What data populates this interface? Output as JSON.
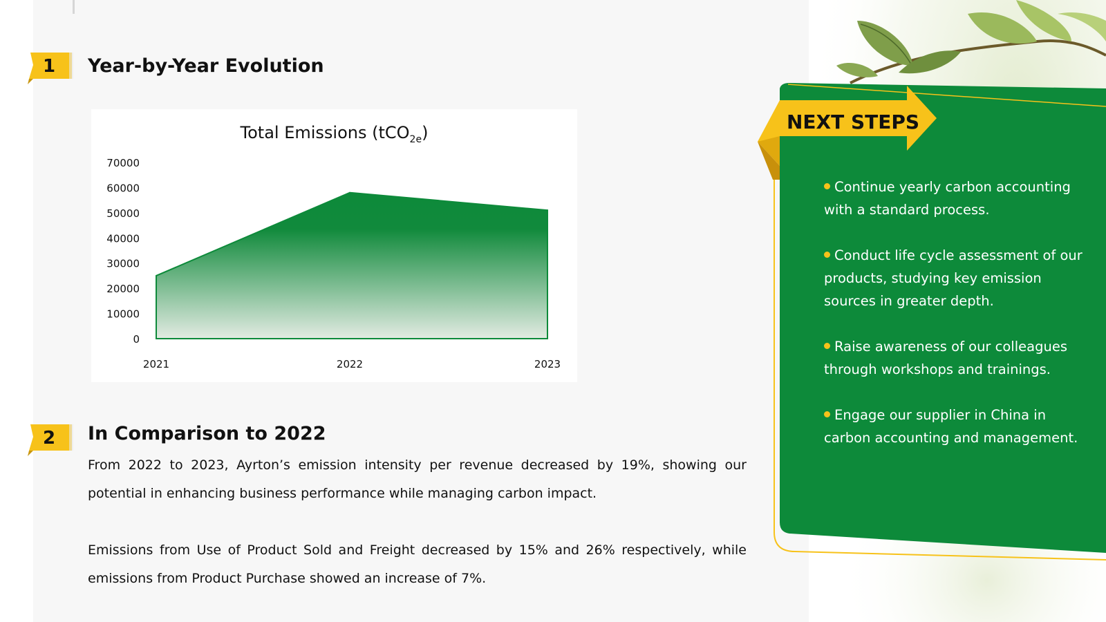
{
  "section1": {
    "number": "1",
    "title": "Year-by-Year Evolution"
  },
  "section2": {
    "number": "2",
    "title": "In Comparison to 2022",
    "paragraph1": "From 2022 to 2023, Ayrton’s emission intensity per revenue decreased by 19%, showing our potential in enhancing business performance while managing carbon impact.",
    "paragraph2": "Emissions from Use of Product Sold and Freight decreased by 15% and 26% respectively, while emissions from Product Purchase showed an increase of 7%."
  },
  "chart_data": {
    "type": "area",
    "title_main": "Total Emissions (tCO",
    "title_sub": "2e",
    "title_end": ")",
    "categories": [
      "2021",
      "2022",
      "2023"
    ],
    "values": [
      25000,
      58000,
      51000
    ],
    "ylim": [
      0,
      70000
    ],
    "yticks": [
      "70000",
      "60000",
      "50000",
      "40000",
      "30000",
      "20000",
      "10000",
      "0"
    ],
    "grid": false,
    "color": "#0d8a3a"
  },
  "next_steps": {
    "title": "NEXT STEPS",
    "items": [
      "Continue yearly carbon accounting with a standard process.",
      "Conduct life cycle assessment of our products, studying key emission sources in greater depth.",
      "Raise awareness of our colleagues through workshops and trainings.",
      "Engage our supplier in China in carbon accounting and management."
    ]
  },
  "colors": {
    "green": "#0d8a3a",
    "yellow": "#f7c21a",
    "panel": "#f7f7f7"
  }
}
